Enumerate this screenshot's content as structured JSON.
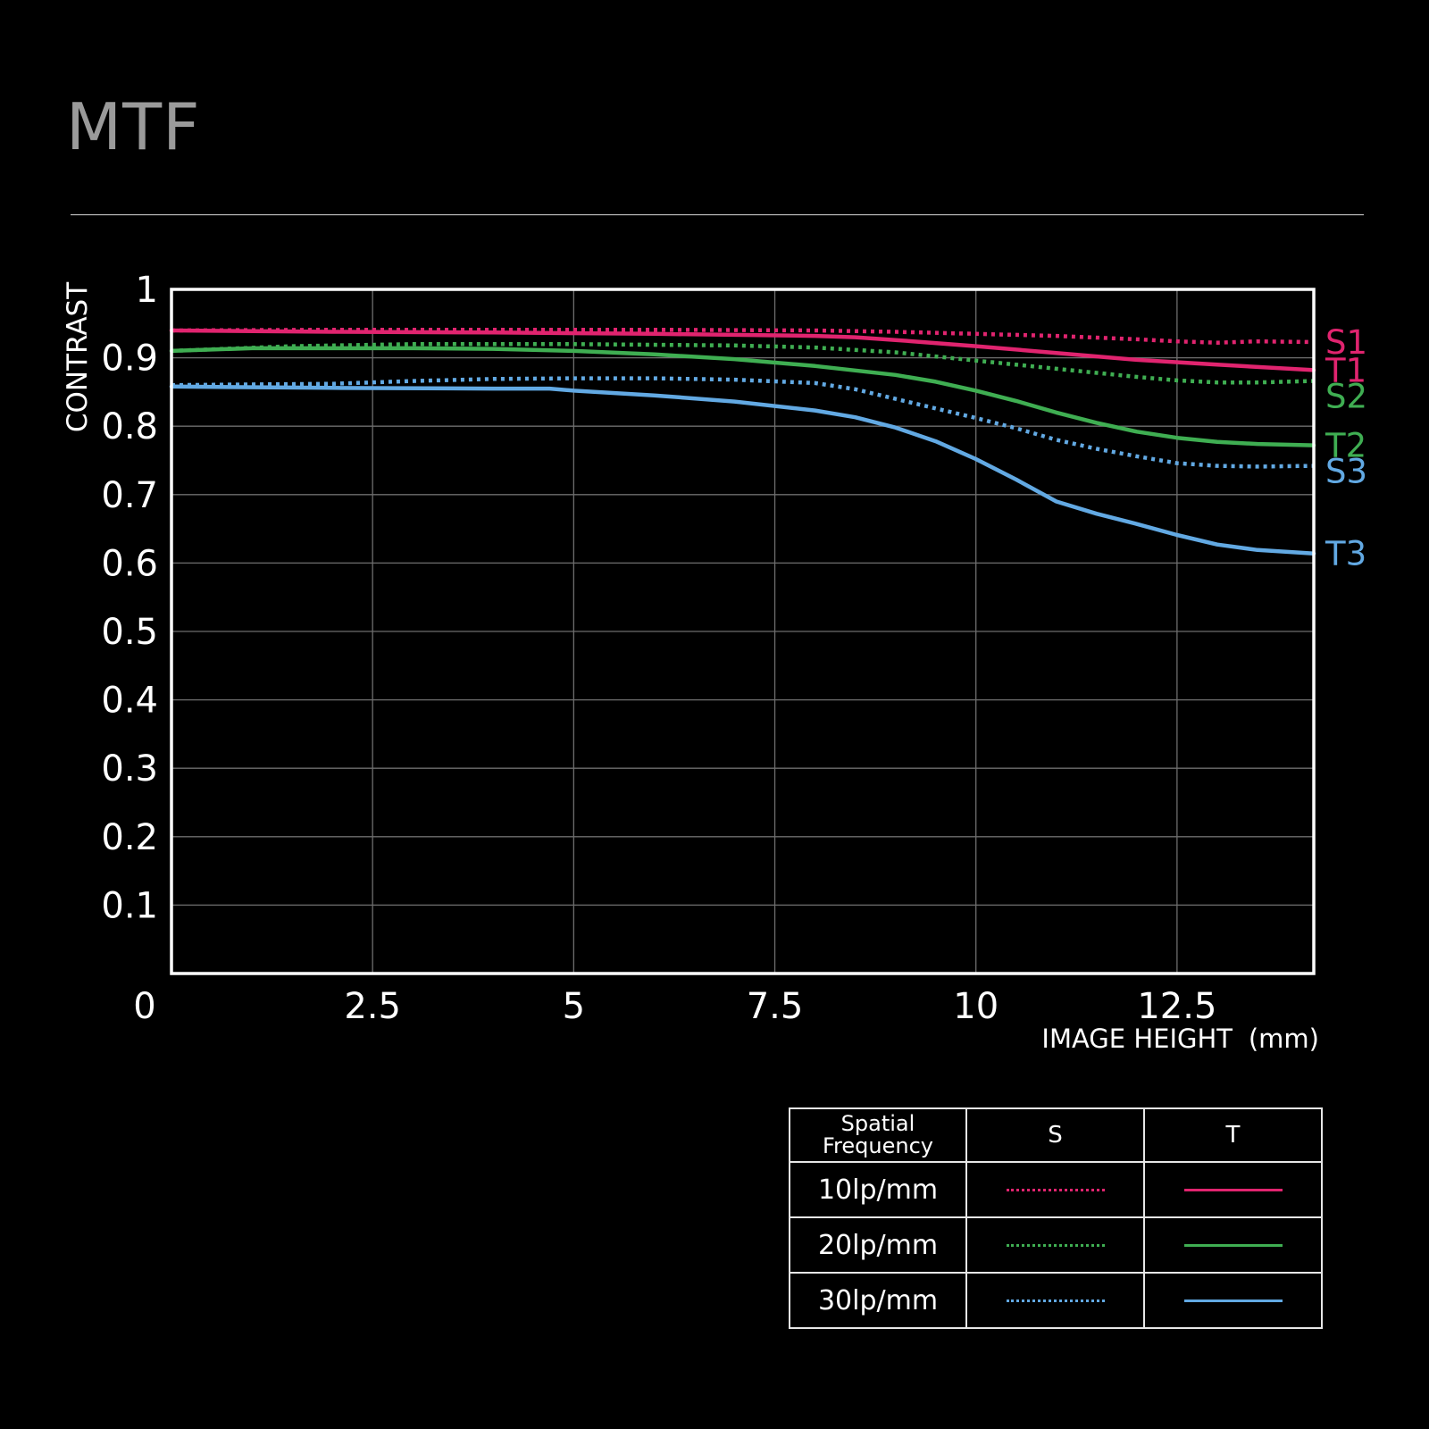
{
  "title": "MTF",
  "chart_data": {
    "type": "line",
    "xlabel": "IMAGE HEIGHT",
    "xunit": "(mm)",
    "ylabel": "CONTRAST",
    "xlim": [
      0,
      14.2
    ],
    "ylim": [
      0,
      1
    ],
    "x_ticks": [
      0,
      2.5,
      5,
      7.5,
      10,
      12.5
    ],
    "x_tick_labels": [
      "0",
      "2.5",
      "5",
      "7.5",
      "10",
      "12.5"
    ],
    "y_ticks": [
      0.1,
      0.2,
      0.3,
      0.4,
      0.5,
      0.6,
      0.7,
      0.8,
      0.9,
      1
    ],
    "y_tick_labels": [
      "0.1",
      "0.2",
      "0.3",
      "0.4",
      "0.5",
      "0.6",
      "0.7",
      "0.8",
      "0.9",
      "1"
    ],
    "grid": true,
    "series": [
      {
        "name": "S1",
        "color": "#e0246f",
        "dash": true,
        "x": [
          0,
          2,
          4,
          6,
          8,
          9,
          10,
          11,
          12,
          12.5,
          13,
          13.5,
          14.2
        ],
        "y": [
          0.94,
          0.941,
          0.941,
          0.941,
          0.94,
          0.938,
          0.935,
          0.932,
          0.927,
          0.924,
          0.922,
          0.924,
          0.923
        ]
      },
      {
        "name": "T1",
        "color": "#e0246f",
        "dash": false,
        "x": [
          0,
          2,
          4,
          6,
          8,
          8.5,
          9,
          10,
          11,
          12,
          13,
          14.2
        ],
        "y": [
          0.94,
          0.938,
          0.937,
          0.935,
          0.932,
          0.93,
          0.926,
          0.917,
          0.907,
          0.897,
          0.89,
          0.882
        ]
      },
      {
        "name": "S2",
        "color": "#3fae52",
        "dash": true,
        "x": [
          0,
          1.5,
          3,
          5,
          7,
          8,
          9,
          10,
          11,
          12,
          12.5,
          13,
          13.5,
          14.2
        ],
        "y": [
          0.91,
          0.917,
          0.92,
          0.92,
          0.918,
          0.915,
          0.908,
          0.896,
          0.884,
          0.872,
          0.867,
          0.864,
          0.864,
          0.866
        ]
      },
      {
        "name": "T2",
        "color": "#3fae52",
        "dash": false,
        "x": [
          0,
          1,
          2,
          3,
          4,
          5,
          6,
          7,
          8,
          9,
          9.5,
          10,
          10.5,
          11,
          11.5,
          12,
          12.5,
          13,
          13.5,
          14.2
        ],
        "y": [
          0.91,
          0.914,
          0.914,
          0.914,
          0.913,
          0.91,
          0.905,
          0.898,
          0.888,
          0.875,
          0.865,
          0.852,
          0.837,
          0.82,
          0.805,
          0.792,
          0.783,
          0.777,
          0.774,
          0.772
        ]
      },
      {
        "name": "S3",
        "color": "#62a9e3",
        "dash": true,
        "x": [
          0,
          2,
          3,
          4,
          5,
          6,
          7,
          8,
          8.5,
          9,
          9.5,
          10,
          10.5,
          11,
          11.5,
          12,
          12.5,
          13,
          13.5,
          14.2
        ],
        "y": [
          0.86,
          0.862,
          0.866,
          0.869,
          0.87,
          0.87,
          0.868,
          0.863,
          0.854,
          0.84,
          0.826,
          0.812,
          0.797,
          0.78,
          0.767,
          0.756,
          0.746,
          0.742,
          0.741,
          0.742
        ]
      },
      {
        "name": "T3",
        "color": "#62a9e3",
        "dash": false,
        "x": [
          0,
          2,
          4,
          4.7,
          5,
          6,
          7,
          8,
          8.5,
          9,
          9.5,
          10,
          10.5,
          11,
          11.5,
          12,
          12.5,
          13,
          13.5,
          14.2
        ],
        "y": [
          0.858,
          0.856,
          0.855,
          0.855,
          0.852,
          0.845,
          0.836,
          0.823,
          0.813,
          0.798,
          0.778,
          0.752,
          0.722,
          0.69,
          0.672,
          0.657,
          0.641,
          0.627,
          0.619,
          0.614
        ]
      }
    ]
  },
  "legend_table": {
    "header": {
      "frequency": "Spatial\nFrequency",
      "s": "S",
      "t": "T"
    },
    "rows": [
      {
        "label": "10lp/mm",
        "color": "#e0246f"
      },
      {
        "label": "20lp/mm",
        "color": "#3fae52"
      },
      {
        "label": "30lp/mm",
        "color": "#62a9e3"
      }
    ]
  }
}
